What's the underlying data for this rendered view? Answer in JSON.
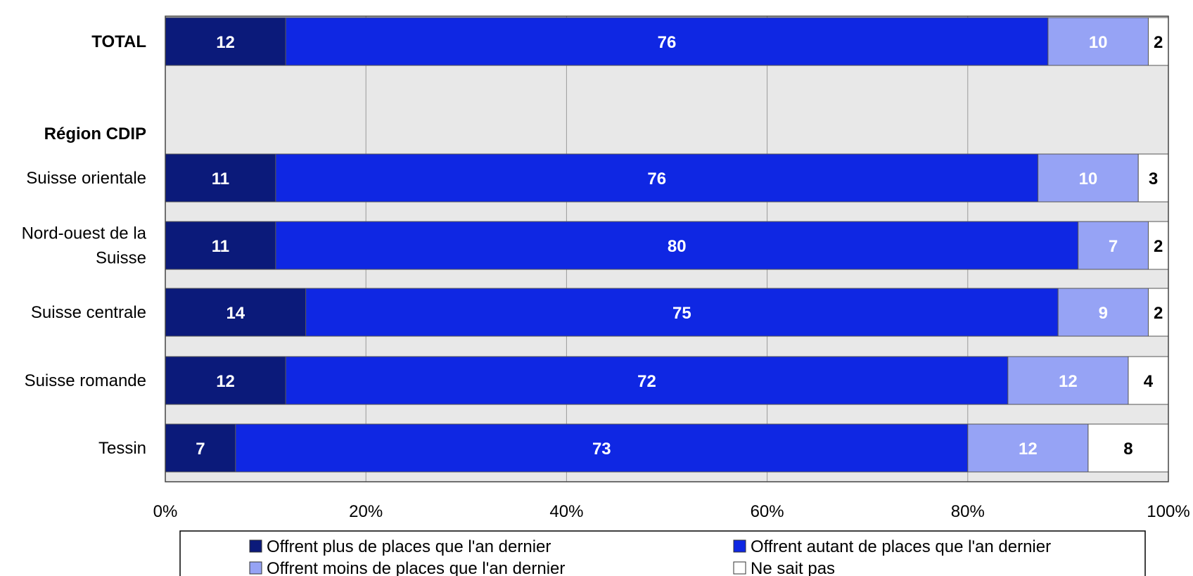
{
  "chart_data": {
    "type": "bar",
    "orientation": "horizontal",
    "stacked": "percent",
    "categories": [
      "TOTAL",
      "",
      "Région CDIP",
      "Suisse orientale",
      "Nord-ouest de la Suisse",
      "Suisse centrale",
      "Suisse romande",
      "Tessin"
    ],
    "category_label_lines": [
      [
        "TOTAL"
      ],
      [],
      [
        "Région CDIP"
      ],
      [
        "Suisse orientale"
      ],
      [
        "Nord-ouest de la",
        "Suisse"
      ],
      [
        "Suisse centrale"
      ],
      [
        "Suisse romande"
      ],
      [
        "Tessin"
      ]
    ],
    "bold_categories": [
      "TOTAL",
      "Région CDIP"
    ],
    "series": [
      {
        "name": "Offrent plus de places que l'an dernier",
        "values": [
          12,
          null,
          null,
          11,
          11,
          14,
          12,
          7
        ]
      },
      {
        "name": "Offrent autant de places que l'an dernier",
        "values": [
          76,
          null,
          null,
          76,
          80,
          75,
          72,
          73
        ]
      },
      {
        "name": "Offrent moins de places que l'an dernier",
        "values": [
          10,
          null,
          null,
          10,
          7,
          9,
          12,
          12
        ]
      },
      {
        "name": "Ne sait pas",
        "values": [
          2,
          null,
          null,
          3,
          2,
          2,
          4,
          8
        ]
      }
    ],
    "colors": [
      "#0b1a7a",
      "#0f27e3",
      "#96a3f5",
      "#ffffff"
    ],
    "label_colors": [
      "#ffffff",
      "#ffffff",
      "#ffffff",
      "#000000"
    ],
    "plot_background": "#e8e8e8",
    "xlim": [
      0,
      100
    ],
    "xticks": [
      "0%",
      "20%",
      "40%",
      "60%",
      "80%",
      "100%"
    ],
    "grid": true,
    "legend_position": "bottom"
  }
}
